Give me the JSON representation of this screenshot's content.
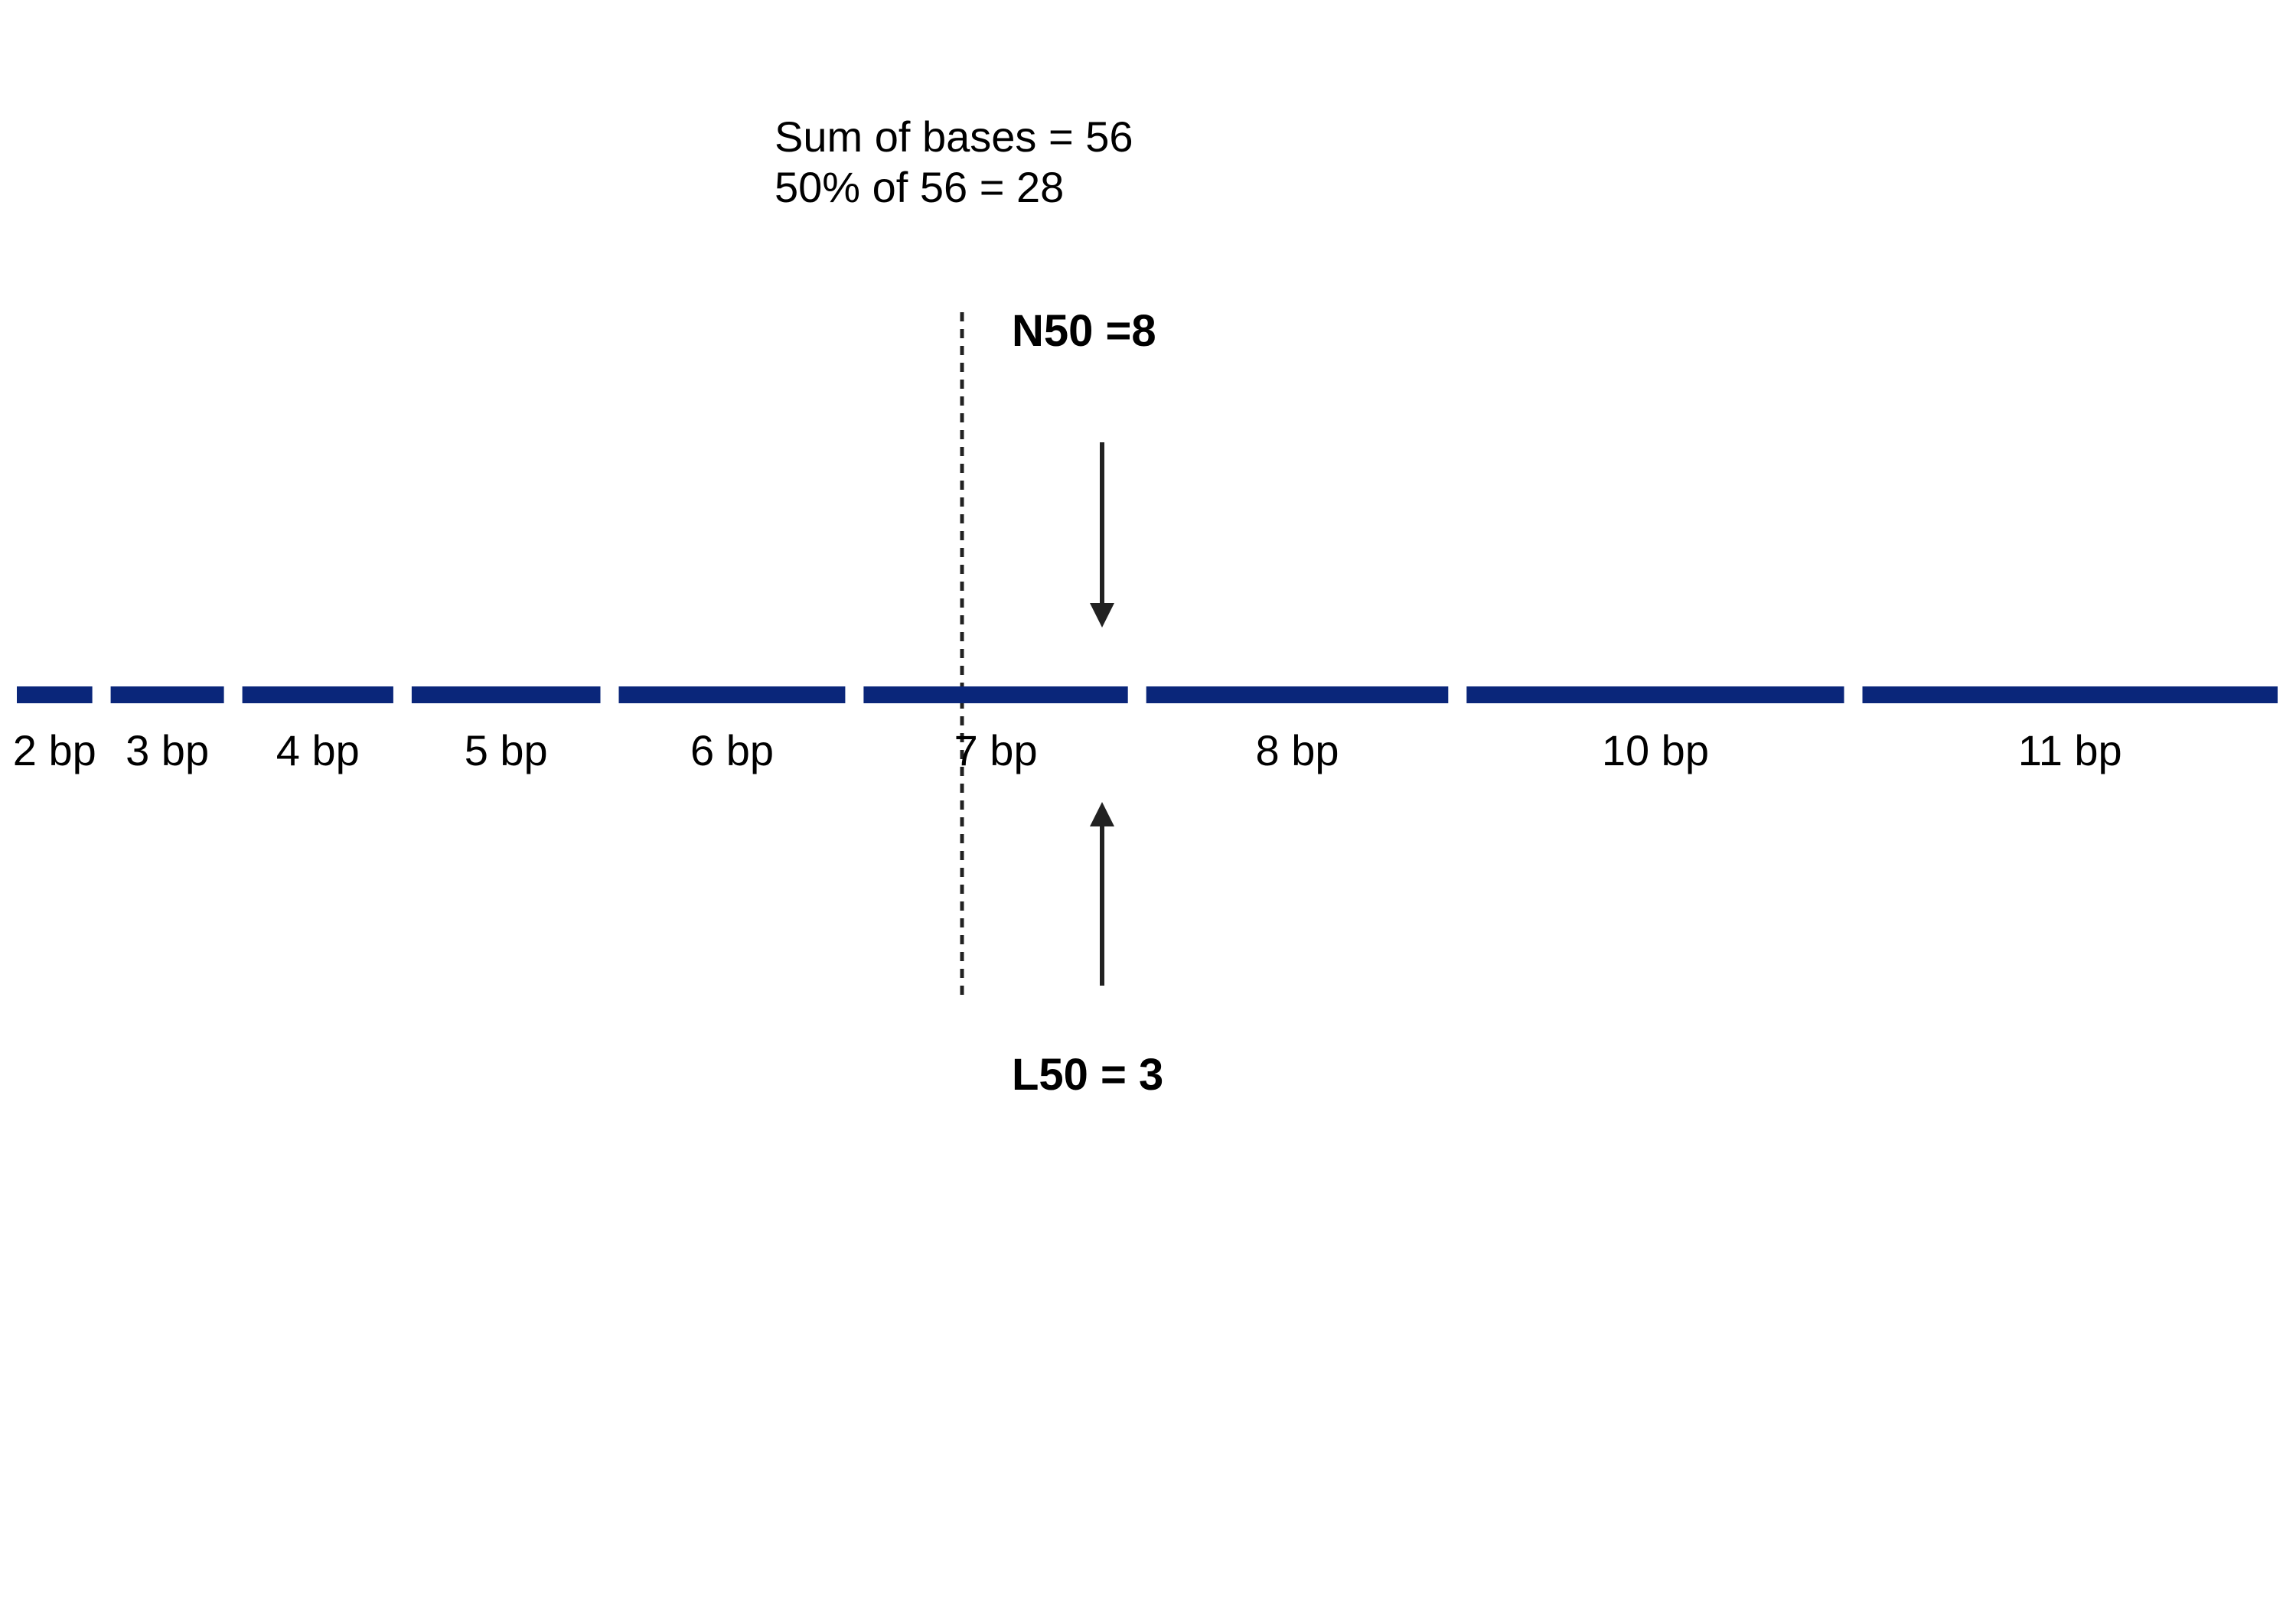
{
  "summary": {
    "sum_line": "Sum of bases = 56",
    "half_line": "50% of 56 = 28"
  },
  "n50_label": "N50 =8",
  "l50_label": "L50 = 3",
  "colors": {
    "contig": "#0a267a",
    "arrow": "#222222",
    "split_line": "#222222"
  },
  "contigs": [
    {
      "length": 2,
      "label": "2 bp"
    },
    {
      "length": 3,
      "label": "3 bp"
    },
    {
      "length": 4,
      "label": "4 bp"
    },
    {
      "length": 5,
      "label": "5 bp"
    },
    {
      "length": 6,
      "label": "6 bp"
    },
    {
      "length": 7,
      "label": "7 bp"
    },
    {
      "length": 8,
      "label": "8 bp"
    },
    {
      "length": 10,
      "label": "10 bp"
    },
    {
      "length": 11,
      "label": "11 bp"
    }
  ]
}
